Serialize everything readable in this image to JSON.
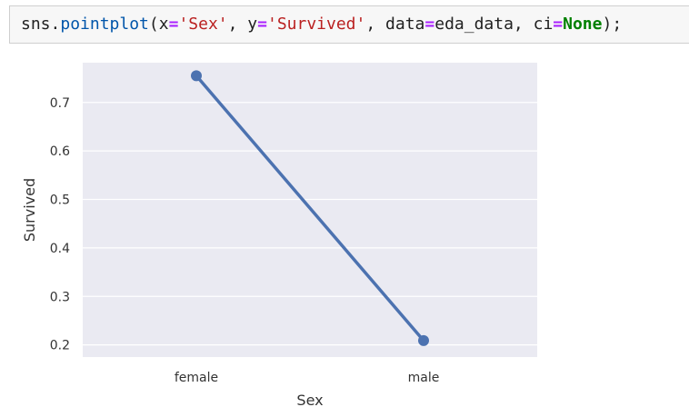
{
  "code": {
    "p1": "sns.",
    "fn": "pointplot",
    "p2": "(x",
    "eq1": "=",
    "s1": "'Sex'",
    "p3": ", y",
    "eq2": "=",
    "s2": "'Survived'",
    "p4": ", data",
    "eq3": "=",
    "p5": "eda_data, ci",
    "eq4": "=",
    "kw": "None",
    "p6": ");"
  },
  "chart_data": {
    "type": "line",
    "style": "seaborn-pointplot",
    "categories": [
      "female",
      "male"
    ],
    "series": [
      {
        "values": [
          0.755,
          0.209
        ],
        "color": "#4c72b0"
      }
    ],
    "xlabel": "Sex",
    "ylabel": "Survived",
    "ylim": [
      0.175,
      0.782
    ],
    "yticks": [
      0.2,
      0.3,
      0.4,
      0.5,
      0.6,
      0.7
    ],
    "ytick_labels": [
      "0.2",
      "0.3",
      "0.4",
      "0.5",
      "0.6",
      "0.7"
    ],
    "grid": true,
    "background": "#eaeaf2"
  }
}
